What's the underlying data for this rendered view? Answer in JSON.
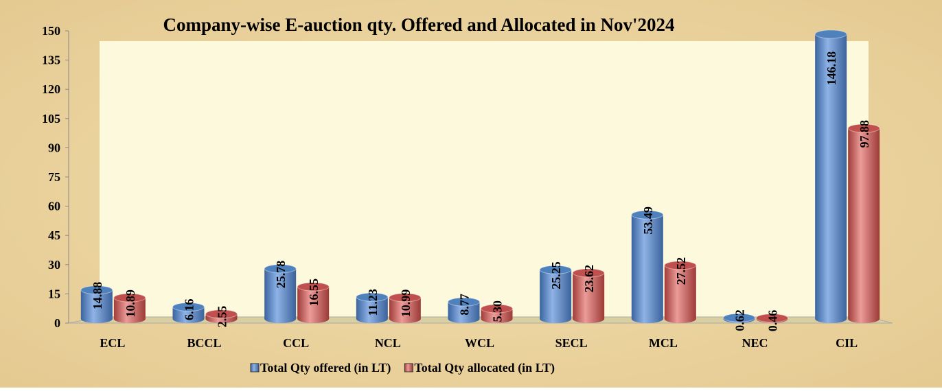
{
  "chart_data": {
    "type": "bar3d",
    "title": "Company-wise E-auction qty. Offered and Allocated in Nov'2024",
    "categories": [
      "ECL",
      "BCCL",
      "CCL",
      "NCL",
      "WCL",
      "SECL",
      "MCL",
      "NEC",
      "CIL"
    ],
    "series": [
      {
        "name": "Total Qty offered (in LT)",
        "color": "#4f81bd",
        "values": [
          14.88,
          6.16,
          25.78,
          11.23,
          8.77,
          25.25,
          53.49,
          0.62,
          146.18
        ],
        "value_labels": [
          "14.88",
          "6.16",
          "25.78",
          "11.23",
          "8.77",
          "25.25",
          "53.49",
          "0.62",
          "146.18"
        ]
      },
      {
        "name": "Total Qty allocated (in LT)",
        "color": "#c0504d",
        "values": [
          10.89,
          2.55,
          16.55,
          10.99,
          5.3,
          23.62,
          27.52,
          0.46,
          97.88
        ],
        "value_labels": [
          "10.89",
          "2.55",
          "16.55",
          "10.99",
          "5.30",
          "23.62",
          "27.52",
          "0.46",
          "97.88"
        ]
      }
    ],
    "ylim": [
      0,
      150
    ],
    "yticks": [
      0,
      15,
      30,
      45,
      60,
      75,
      90,
      105,
      120,
      135,
      150
    ],
    "legend": "bottom"
  }
}
